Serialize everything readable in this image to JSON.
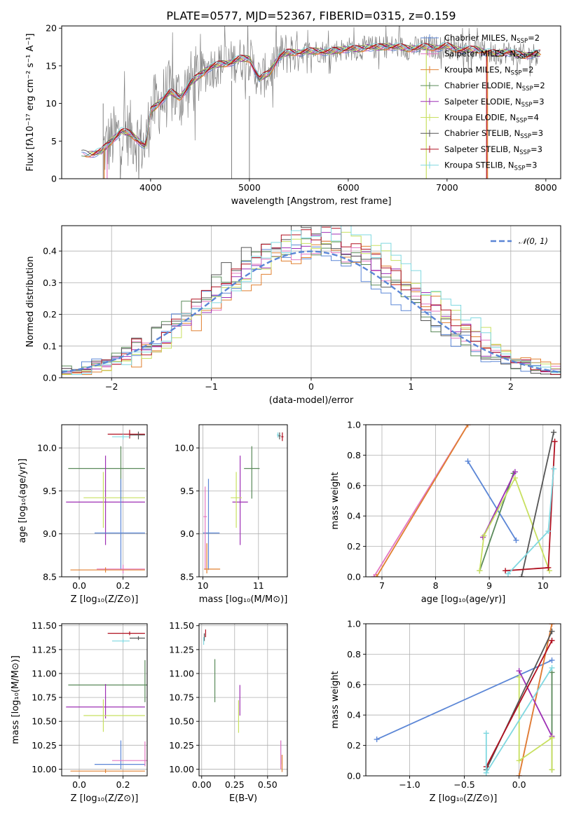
{
  "title": "PLATE=0577, MJD=52367, FIBERID=0315, z=0.159",
  "colors": {
    "observed": "#808080",
    "Chabrier MILES": "#5b86d6",
    "Salpeter MILES": "#e377c2",
    "Kroupa MILES": "#e08030",
    "Chabrier ELODIE": "#5a8a5a",
    "Salpeter ELODIE": "#9e30b5",
    "Kroupa ELODIE": "#c8e060",
    "Chabrier STELIB": "#555555",
    "Salpeter STELIB": "#b01020",
    "Kroupa STELIB": "#80d8e0",
    "normal": "#5b86d6"
  },
  "chart_data": [
    {
      "id": "spectrum",
      "type": "line",
      "title": "PLATE=0577, MJD=52367, FIBERID=0315, z=0.159",
      "xlabel": "wavelength [Angstrom, rest frame]",
      "ylabel": "Flux [fλ10⁻¹⁷ erg cm⁻² s⁻¹ A⁻¹]",
      "xlim": [
        3100,
        8150
      ],
      "ylim": [
        0,
        20.3
      ],
      "xticks": [
        4000,
        5000,
        6000,
        7000,
        8000
      ],
      "yticks": [
        0,
        5,
        10,
        15,
        20
      ],
      "legend_position": "top-right",
      "legend": [
        {
          "name": "Chabrier MILES",
          "text": "Chabrier MILES, N",
          "n": "=2"
        },
        {
          "name": "Salpeter MILES",
          "text": "Salpeter MILES, N",
          "n": "=2"
        },
        {
          "name": "Kroupa MILES",
          "text": "Kroupa MILES, N",
          "n": "=2"
        },
        {
          "name": "Chabrier ELODIE",
          "text": "Chabrier ELODIE, N",
          "n": "=2"
        },
        {
          "name": "Salpeter ELODIE",
          "text": "Salpeter ELODIE, N",
          "n": "=3"
        },
        {
          "name": "Kroupa ELODIE",
          "text": "Kroupa ELODIE, N",
          "n": "=4"
        },
        {
          "name": "Chabrier STELIB",
          "text": "Chabrier STELIB, N",
          "n": "=3"
        },
        {
          "name": "Salpeter STELIB",
          "text": "Salpeter STELIB, N",
          "n": "=3"
        },
        {
          "name": "Kroupa STELIB",
          "text": "Kroupa STELIB, N",
          "n": "=3"
        }
      ],
      "legend_sub": "SSP",
      "model_curve": {
        "wavelength": [
          3300,
          3400,
          3500,
          3600,
          3700,
          3800,
          3900,
          3950,
          4000,
          4100,
          4200,
          4300,
          4400,
          4500,
          4600,
          4700,
          4800,
          4900,
          5000,
          5100,
          5200,
          5300,
          5400,
          5500,
          5600,
          5700,
          5800,
          5900,
          6000,
          6100,
          6200,
          6300,
          6400,
          6500,
          6600,
          6700,
          6800,
          6900,
          7000,
          7100,
          7200,
          7300,
          7400,
          7500,
          7600,
          7700,
          7800,
          7900
        ],
        "flux": [
          3.4,
          3.3,
          3.6,
          5.0,
          6.3,
          6.0,
          4.8,
          4.2,
          9.0,
          10.3,
          11.5,
          10.8,
          12.6,
          13.8,
          14.8,
          15.2,
          15.4,
          15.9,
          16.0,
          13.2,
          14.1,
          16.2,
          16.8,
          16.8,
          16.9,
          17.0,
          16.8,
          17.1,
          17.3,
          17.2,
          17.5,
          17.4,
          17.6,
          17.5,
          17.3,
          17.4,
          17.5,
          17.4,
          17.6,
          17.2,
          17.1,
          17.2,
          16.8,
          16.6,
          16.9,
          16.5,
          16.4,
          16.6
        ]
      }
    },
    {
      "id": "residuals",
      "type": "line",
      "xlabel": "(data-model)/error",
      "ylabel": "Normed distribution",
      "xlim": [
        -2.5,
        2.5
      ],
      "ylim": [
        0,
        0.48
      ],
      "xticks": [
        -2,
        -1,
        0,
        1,
        2
      ],
      "yticks": [
        0.0,
        0.1,
        0.2,
        0.3,
        0.4
      ],
      "legend_position": "top-right",
      "legend_label": "𝒩(0, 1)",
      "series": [
        {
          "name": "normal",
          "x": [
            -2.5,
            2.5
          ],
          "note": "standard normal pdf, dashed"
        }
      ]
    },
    {
      "id": "age_vs_Z",
      "type": "scatter",
      "xlabel": "Z [log₁₀(Z/Z⊙)]",
      "ylabel": "age  [log₁₀(age/yr)]",
      "xlim": [
        -0.08,
        0.31
      ],
      "ylim": [
        8.5,
        10.27
      ],
      "xticks": [
        0.0,
        0.2
      ],
      "yticks": [
        8.5,
        9.0,
        9.5,
        10.0
      ],
      "points": [
        {
          "model": "Salpeter STELIB",
          "x": 0.23,
          "y": 10.16,
          "xerr": [
            0.1,
            0.07
          ],
          "yerr": [
            0.05,
            0.05
          ]
        },
        {
          "model": "Chabrier STELIB",
          "x": 0.27,
          "y": 10.15,
          "xerr": [
            0.04,
            0.03
          ],
          "yerr": [
            0.05,
            0.04
          ]
        },
        {
          "model": "Kroupa STELIB",
          "x": 0.2,
          "y": 10.13,
          "xerr": [
            0.05,
            0.03
          ],
          "yerr": [
            0.03,
            0.03
          ]
        },
        {
          "model": "Chabrier ELODIE",
          "x": 0.19,
          "y": 9.76,
          "xerr": [
            0.24,
            0.11
          ],
          "yerr": [
            0.35,
            0.26
          ]
        },
        {
          "model": "Salpeter ELODIE",
          "x": 0.12,
          "y": 9.37,
          "xerr": [
            0.18,
            0.18
          ],
          "yerr": [
            0.5,
            0.54
          ]
        },
        {
          "model": "Kroupa ELODIE",
          "x": 0.11,
          "y": 9.42,
          "xerr": [
            0.09,
            0.19
          ],
          "yerr": [
            0.35,
            0.3
          ]
        },
        {
          "model": "Chabrier MILES",
          "x": 0.19,
          "y": 9.01,
          "xerr": [
            0.12,
            0.11
          ],
          "yerr": [
            0.43,
            0.63
          ]
        },
        {
          "model": "Salpeter MILES",
          "x": 0.2,
          "y": 8.59,
          "xerr": [
            0.12,
            0.1
          ],
          "yerr": [
            0.05,
            0.05
          ]
        },
        {
          "model": "Kroupa MILES",
          "x": 0.12,
          "y": 8.58,
          "xerr": [
            0.16,
            0.18
          ],
          "yerr": [
            0.03,
            0.03
          ]
        }
      ]
    },
    {
      "id": "age_vs_mass",
      "type": "scatter",
      "xlabel": "mass [log₁₀(M/M⊙)]",
      "xlim": [
        9.93,
        11.52
      ],
      "ylim": [
        8.5,
        10.27
      ],
      "xticks": [
        10,
        11
      ],
      "yticks": [
        8.5,
        9.0,
        9.5,
        10.0
      ],
      "points": [
        {
          "model": "Salpeter STELIB",
          "x": 11.43,
          "y": 10.13,
          "xerr": [
            0.02,
            0.02
          ],
          "yerr": [
            0.05,
            0.05
          ]
        },
        {
          "model": "Chabrier STELIB",
          "x": 11.38,
          "y": 10.14,
          "xerr": [
            0.02,
            0.02
          ],
          "yerr": [
            0.04,
            0.04
          ]
        },
        {
          "model": "Kroupa STELIB",
          "x": 11.35,
          "y": 10.15,
          "xerr": [
            0.02,
            0.02
          ],
          "yerr": [
            0.03,
            0.03
          ]
        },
        {
          "model": "Chabrier ELODIE",
          "x": 10.88,
          "y": 9.76,
          "xerr": [
            0.14,
            0.14
          ],
          "yerr": [
            0.35,
            0.26
          ]
        },
        {
          "model": "Salpeter ELODIE",
          "x": 10.67,
          "y": 9.37,
          "xerr": [
            0.14,
            0.14
          ],
          "yerr": [
            0.5,
            0.54
          ]
        },
        {
          "model": "Kroupa ELODIE",
          "x": 10.6,
          "y": 9.42,
          "xerr": [
            0.1,
            0.1
          ],
          "yerr": [
            0.35,
            0.3
          ]
        },
        {
          "model": "Chabrier MILES",
          "x": 10.1,
          "y": 9.01,
          "xerr": [
            0.1,
            0.2
          ],
          "yerr": [
            0.43,
            0.63
          ]
        },
        {
          "model": "Salpeter MILES",
          "x": 10.04,
          "y": 9.2,
          "xerr": [
            0.03,
            0.03
          ],
          "yerr": [
            0.62,
            0.35
          ]
        },
        {
          "model": "Kroupa MILES",
          "x": 10.07,
          "y": 8.59,
          "xerr": [
            0.05,
            0.24
          ],
          "yerr": [
            0.05,
            0.3
          ]
        }
      ]
    },
    {
      "id": "weight_vs_age",
      "type": "line",
      "xlabel": "age  [log₁₀(age/yr)]",
      "ylabel": "mass weight",
      "xlim": [
        6.7,
        10.33
      ],
      "ylim": [
        0,
        1.0
      ],
      "xticks": [
        7,
        8,
        9,
        10
      ],
      "yticks": [
        0.0,
        0.2,
        0.4,
        0.6,
        0.8,
        1.0
      ],
      "series": [
        {
          "name": "Chabrier MILES",
          "x": [
            8.6,
            9.5
          ],
          "y": [
            0.76,
            0.24
          ]
        },
        {
          "name": "Salpeter MILES",
          "x": [
            6.85,
            8.6
          ],
          "y": [
            0.0,
            1.0
          ]
        },
        {
          "name": "Kroupa MILES",
          "x": [
            6.9,
            8.6
          ],
          "y": [
            0.0,
            1.0
          ]
        },
        {
          "name": "Chabrier ELODIE",
          "x": [
            8.82,
            9.45
          ],
          "y": [
            0.04,
            0.68
          ]
        },
        {
          "name": "Salpeter ELODIE",
          "x": [
            8.88,
            9.48
          ],
          "y": [
            0.26,
            0.69
          ]
        },
        {
          "name": "Kroupa ELODIE",
          "x": [
            8.82,
            8.9,
            9.48,
            10.12
          ],
          "y": [
            0.04,
            0.27,
            0.65,
            0.04
          ]
        },
        {
          "name": "Chabrier STELIB",
          "x": [
            9.6,
            10.2
          ],
          "y": [
            0.0,
            0.95
          ]
        },
        {
          "name": "Salpeter STELIB",
          "x": [
            9.3,
            10.1,
            10.22
          ],
          "y": [
            0.04,
            0.06,
            0.89
          ]
        },
        {
          "name": "Kroupa STELIB",
          "x": [
            9.35,
            10.1,
            10.2
          ],
          "y": [
            0.02,
            0.3,
            0.71
          ]
        }
      ]
    },
    {
      "id": "mass_vs_Z",
      "type": "scatter",
      "xlabel": "Z [log₁₀(Z/Z⊙)]",
      "ylabel": "mass [log₁₀(M/M⊙)]",
      "xlim": [
        -0.08,
        0.31
      ],
      "ylim": [
        9.93,
        11.52
      ],
      "xticks": [
        0.0,
        0.2
      ],
      "yticks": [
        10.0,
        10.25,
        10.5,
        10.75,
        11.0,
        11.25,
        11.5
      ],
      "points": [
        {
          "model": "Salpeter STELIB",
          "x": 0.23,
          "y": 11.42,
          "xerr": [
            0.1,
            0.07
          ],
          "yerr": [
            0.02,
            0.02
          ]
        },
        {
          "model": "Chabrier STELIB",
          "x": 0.27,
          "y": 11.37,
          "xerr": [
            0.04,
            0.03
          ],
          "yerr": [
            0.02,
            0.02
          ]
        },
        {
          "model": "Kroupa STELIB",
          "x": 0.2,
          "y": 11.34,
          "xerr": [
            0.05,
            0.03
          ],
          "yerr": [
            0.02,
            0.02
          ]
        },
        {
          "model": "Chabrier ELODIE",
          "x": 0.3,
          "y": 10.88,
          "xerr": [
            0.35,
            0.01
          ],
          "yerr": [
            0.18,
            0.26
          ]
        },
        {
          "model": "Salpeter ELODIE",
          "x": 0.12,
          "y": 10.65,
          "xerr": [
            0.18,
            0.18
          ],
          "yerr": [
            0.12,
            0.24
          ]
        },
        {
          "model": "Kroupa ELODIE",
          "x": 0.11,
          "y": 10.56,
          "xerr": [
            0.09,
            0.19
          ],
          "yerr": [
            0.17,
            0.17
          ]
        },
        {
          "model": "Chabrier MILES",
          "x": 0.19,
          "y": 10.05,
          "xerr": [
            0.12,
            0.11
          ],
          "yerr": [
            0.05,
            0.25
          ]
        },
        {
          "model": "Salpeter MILES",
          "x": 0.3,
          "y": 10.09,
          "xerr": [
            0.15,
            0.01
          ],
          "yerr": [
            0.06,
            0.2
          ]
        },
        {
          "model": "Kroupa MILES",
          "x": 0.12,
          "y": 9.98,
          "xerr": [
            0.16,
            0.18
          ],
          "yerr": [
            0.02,
            0.02
          ]
        }
      ]
    },
    {
      "id": "mass_vs_EBV",
      "type": "scatter",
      "xlabel": "E(B-V)",
      "xlim": [
        -0.02,
        0.65
      ],
      "ylim": [
        9.93,
        11.52
      ],
      "xticks": [
        0.0,
        0.25,
        0.5
      ],
      "yticks": [
        10.0,
        10.25,
        10.5,
        10.75,
        11.0,
        11.25,
        11.5
      ],
      "points": [
        {
          "model": "Salpeter STELIB",
          "x": 0.03,
          "y": 11.42,
          "yerr": [
            0.04,
            0.04
          ]
        },
        {
          "model": "Chabrier STELIB",
          "x": 0.02,
          "y": 11.38,
          "yerr": [
            0.04,
            0.04
          ]
        },
        {
          "model": "Kroupa STELIB",
          "x": 0.015,
          "y": 11.34,
          "yerr": [
            0.04,
            0.04
          ]
        },
        {
          "model": "Chabrier ELODIE",
          "x": 0.1,
          "y": 10.95,
          "yerr": [
            0.25,
            0.2
          ]
        },
        {
          "model": "Salpeter ELODIE",
          "x": 0.29,
          "y": 10.72,
          "yerr": [
            0.16,
            0.16
          ]
        },
        {
          "model": "Kroupa ELODIE",
          "x": 0.28,
          "y": 10.55,
          "yerr": [
            0.17,
            0.17
          ]
        },
        {
          "model": "Chabrier MILES",
          "x": 0.6,
          "y": 10.15,
          "yerr": [
            0.1,
            0.15
          ]
        },
        {
          "model": "Salpeter MILES",
          "x": 0.6,
          "y": 10.1,
          "yerr": [
            0.1,
            0.2
          ]
        },
        {
          "model": "Kroupa MILES",
          "x": 0.61,
          "y": 10.05,
          "yerr": [
            0.08,
            0.1
          ]
        }
      ]
    },
    {
      "id": "weight_vs_Z",
      "type": "line",
      "xlabel": "Z [log₁₀(Z/Z⊙)]",
      "ylabel": "mass weight",
      "xlim": [
        -1.4,
        0.38
      ],
      "ylim": [
        0,
        1.0
      ],
      "xticks": [
        -1.0,
        -0.5,
        0.0
      ],
      "yticks": [
        0.0,
        0.2,
        0.4,
        0.6,
        0.8,
        1.0
      ],
      "series": [
        {
          "name": "Chabrier MILES",
          "x": [
            -1.3,
            0.3
          ],
          "y": [
            0.24,
            0.76
          ]
        },
        {
          "name": "Salpeter MILES",
          "x": [
            0.0,
            0.3
          ],
          "y": [
            0.0,
            1.0
          ]
        },
        {
          "name": "Kroupa MILES",
          "x": [
            0.0,
            0.3
          ],
          "y": [
            0.0,
            1.0
          ]
        },
        {
          "name": "Chabrier ELODIE",
          "x": [
            0.3,
            0.3
          ],
          "y": [
            0.04,
            0.68
          ]
        },
        {
          "name": "Salpeter ELODIE",
          "x": [
            0.0,
            0.3
          ],
          "y": [
            0.69,
            0.26
          ]
        },
        {
          "name": "Kroupa ELODIE",
          "x": [
            0.0,
            0.0,
            0.3,
            0.3
          ],
          "y": [
            0.65,
            0.1,
            0.25,
            0.04
          ]
        },
        {
          "name": "Chabrier STELIB",
          "x": [
            -0.3,
            0.3
          ],
          "y": [
            0.04,
            0.95
          ]
        },
        {
          "name": "Salpeter STELIB",
          "x": [
            -0.3,
            0.3
          ],
          "y": [
            0.06,
            0.89
          ]
        },
        {
          "name": "Kroupa STELIB",
          "x": [
            -0.3,
            -0.3,
            0.3
          ],
          "y": [
            0.28,
            0.02,
            0.71
          ]
        }
      ]
    }
  ]
}
